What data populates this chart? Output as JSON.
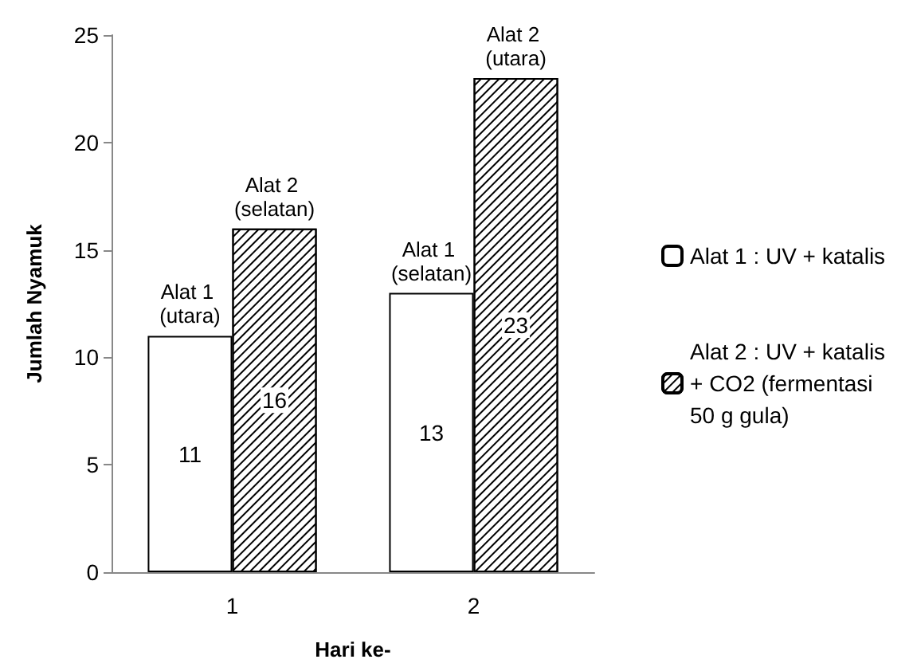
{
  "chart_data": {
    "type": "bar",
    "xlabel": "Hari ke-",
    "ylabel": "Jumlah Nyamuk",
    "categories": [
      "1",
      "2"
    ],
    "series": [
      {
        "name": "Alat 1 : UV + katalis",
        "color": "#ffffff",
        "values": [
          11,
          13
        ]
      },
      {
        "name": "Alat 2 : UV + katalis + CO2 (fermentasi 50 g gula)",
        "color": "#000000",
        "values": [
          16,
          23
        ]
      }
    ],
    "data_labels": true,
    "annotations": [
      {
        "text": "Alat 1 (utara)",
        "x": "1",
        "y": 11
      },
      {
        "text": "Alat 2 (selatan)",
        "x": "1",
        "y": 16
      },
      {
        "text": "Alat 1 (selatan)",
        "x": "2",
        "y": 13
      },
      {
        "text": "Alat 2 (utara)",
        "x": "2",
        "y": 23
      }
    ],
    "ylim": [
      0,
      25
    ],
    "yticks": [
      0,
      5,
      10,
      15,
      20,
      25
    ],
    "grid": false,
    "legend": "right"
  }
}
